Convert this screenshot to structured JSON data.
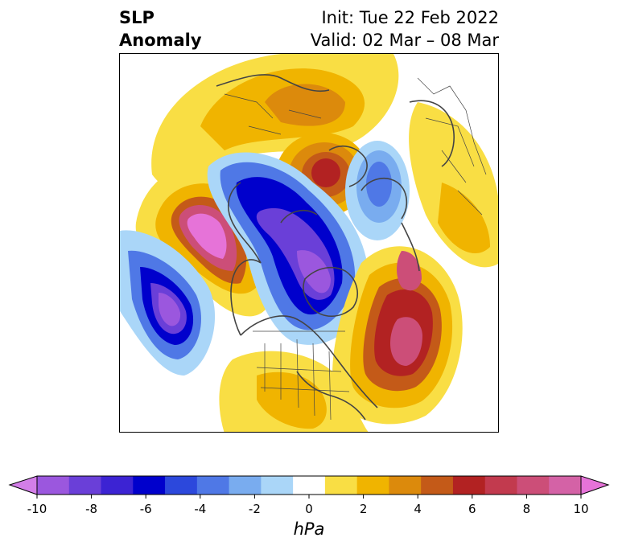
{
  "title": {
    "left_line1": "SLP",
    "left_line2": "Anomaly",
    "init": "Init: Tue 22 Feb 2022",
    "valid": "Valid: 02 Mar – 08 Mar"
  },
  "colorbar": {
    "units": "hPa",
    "tick_labels": [
      "-10",
      "-8",
      "-6",
      "-4",
      "-2",
      "0",
      "2",
      "4",
      "6",
      "8",
      "10"
    ],
    "colors": [
      "#d37ee8",
      "#9b57de",
      "#6a3fd8",
      "#3c23d3",
      "#0000cc",
      "#2c48dc",
      "#4f78e6",
      "#79acef",
      "#aad6f8",
      "#ffffff",
      "#f9de44",
      "#f0b400",
      "#dc8a0c",
      "#c45a18",
      "#b22222",
      "#c23a4e",
      "#cc4e78",
      "#d462a6",
      "#e673d8"
    ],
    "extend": "both"
  },
  "map": {
    "projection": "polar stereographic, North Pole",
    "field": "sea level pressure anomaly",
    "features": [
      {
        "name": "positive anomaly over Alaska/Gulf of Alaska",
        "max_hPa": 10
      },
      {
        "name": "negative anomaly over Canada/Arctic",
        "min_hPa": -8
      },
      {
        "name": "negative anomaly over North Pacific",
        "min_hPa": -8
      },
      {
        "name": "positive anomaly over North Atlantic",
        "max_hPa": 8
      },
      {
        "name": "positive anomaly over Siberia",
        "max_hPa": 6
      },
      {
        "name": "negative anomaly over Scandinavia",
        "min_hPa": -4
      }
    ]
  }
}
